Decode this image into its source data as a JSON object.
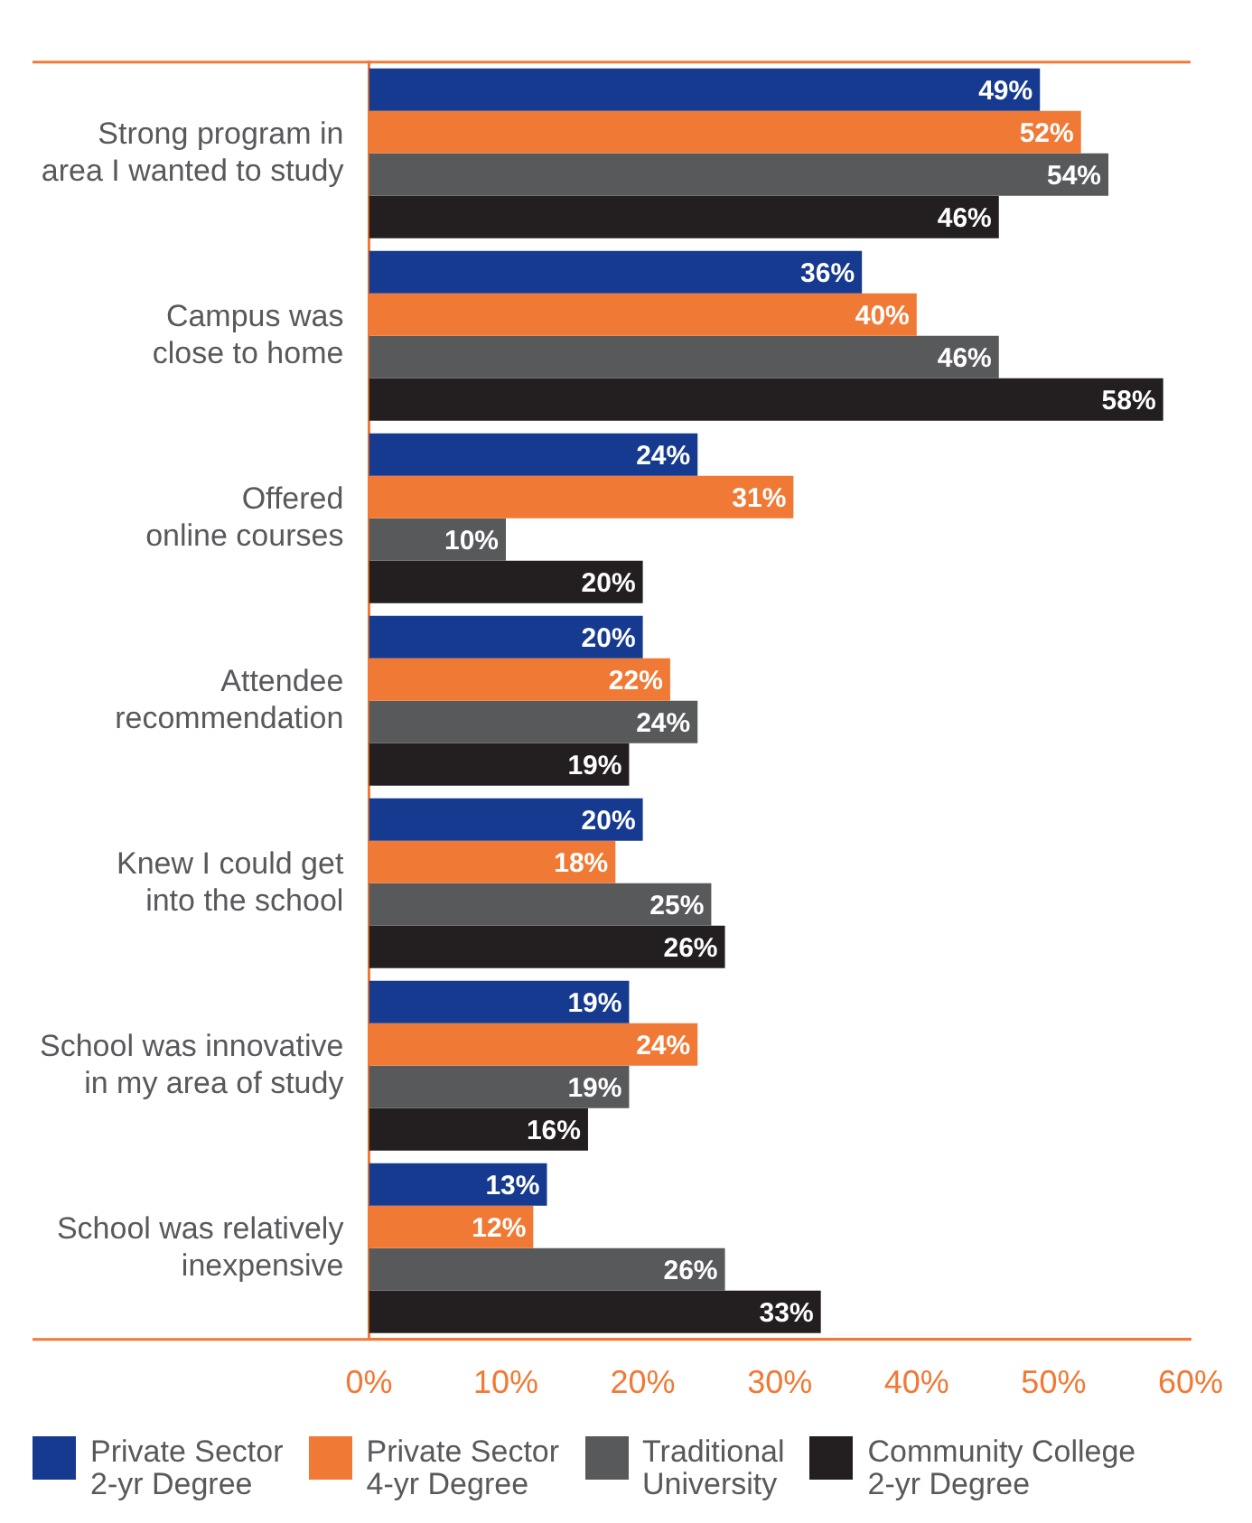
{
  "chart_data": {
    "type": "bar",
    "orientation": "horizontal",
    "categories": [
      "Strong program in area I wanted to study",
      "Campus was close to home",
      "Offered online courses",
      "Attendee recommendation",
      "Knew I could get into the school",
      "School was innovative in my area of study",
      "School was relatively inexpensive"
    ],
    "series": [
      {
        "name": "Private Sector 2-yr Degree",
        "color": "#163a8f",
        "values": [
          49,
          36,
          24,
          20,
          20,
          19,
          13
        ],
        "value_labels": [
          "49%",
          "36%",
          "24%",
          "20%",
          "20%",
          "19%",
          "13%"
        ]
      },
      {
        "name": "Private Sector 4-yr Degree",
        "color": "#f07a35",
        "values": [
          52,
          40,
          31,
          22,
          18,
          24,
          12
        ],
        "value_labels": [
          "52%",
          "40%",
          "31%",
          "22%",
          "18%",
          "24%",
          "12%"
        ]
      },
      {
        "name": "Traditional University",
        "color": "#58595b",
        "values": [
          54,
          46,
          10,
          24,
          25,
          19,
          26
        ],
        "value_labels": [
          "54%",
          "46%",
          "10%",
          "24%",
          "25%",
          "19%",
          "26%"
        ]
      },
      {
        "name": "Community College 2-yr Degree",
        "color": "#231f20",
        "values": [
          46,
          58,
          20,
          19,
          26,
          16,
          33
        ],
        "value_labels": [
          "46%",
          "58%",
          "20%",
          "19%",
          "26%",
          "16%",
          "33%"
        ]
      }
    ],
    "xlim": [
      0,
      60
    ],
    "xticks": [
      {
        "value": 0,
        "label": "0%"
      },
      {
        "value": 10,
        "label": "10%"
      },
      {
        "value": 20,
        "label": "20%"
      },
      {
        "value": 30,
        "label": "30%"
      },
      {
        "value": 40,
        "label": "40%"
      },
      {
        "value": 50,
        "label": "50%"
      },
      {
        "value": 60,
        "label": "60%"
      }
    ],
    "grid": false,
    "legend": "bottom"
  }
}
